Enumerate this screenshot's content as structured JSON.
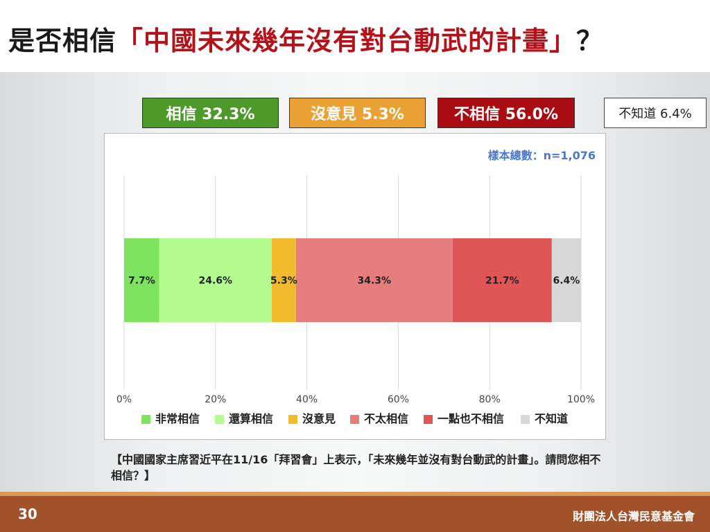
{
  "title": {
    "prefix": "是否相信",
    "quote": "「中國未來幾年沒有對台動武的計畫」",
    "suffix": "？"
  },
  "summary": {
    "believe": "相信 32.3%",
    "no_opinion": "沒意見 5.3%",
    "disbelieve": "不相信 56.0%",
    "unknown": "不知道 6.4%"
  },
  "question": "【中國國家主席習近平在11/16「拜習會」上表示，「未來幾年並沒有對台動武的計畫」。請問您相不相信？】",
  "footer": {
    "page_number": "30",
    "org": "財團法人台灣民意基金會"
  },
  "colors": {
    "title_red": "#b3121a",
    "footer_bg": "#a1522b",
    "footer_stripe": "#d79a55"
  },
  "chart_data": {
    "type": "bar",
    "orientation": "horizontal-stacked",
    "annotation": "樣本總數：n=1,076",
    "xlim": [
      0,
      100
    ],
    "x_ticks": [
      "0%",
      "20%",
      "40%",
      "60%",
      "80%",
      "100%"
    ],
    "grid": true,
    "legend_position": "bottom",
    "series": [
      {
        "name": "非常相信",
        "value": 7.7,
        "label": "7.7%",
        "color": "#7ee35f"
      },
      {
        "name": "還算相信",
        "value": 24.6,
        "label": "24.6%",
        "color": "#b4fb90"
      },
      {
        "name": "沒意見",
        "value": 5.3,
        "label": "5.3%",
        "color": "#f0bc2c"
      },
      {
        "name": "不太相信",
        "value": 34.3,
        "label": "34.3%",
        "color": "#e57d7c"
      },
      {
        "name": "一點也不相信",
        "value": 21.7,
        "label": "21.7%",
        "color": "#e05656"
      },
      {
        "name": "不知道",
        "value": 6.4,
        "label": "6.4%",
        "color": "#d8d8d8"
      }
    ]
  }
}
